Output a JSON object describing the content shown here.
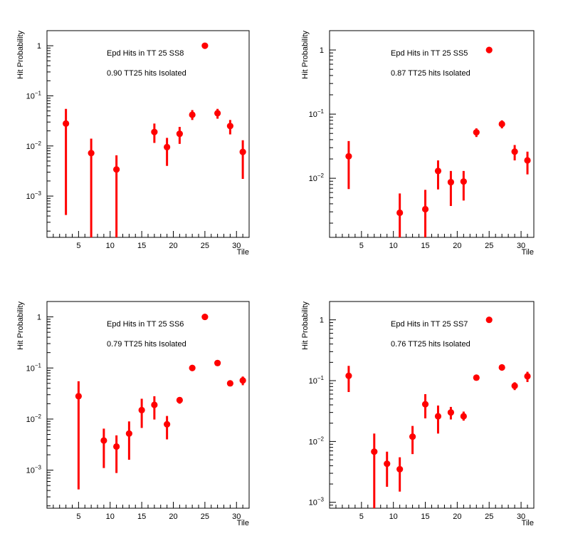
{
  "chart_data": [
    {
      "type": "scatter",
      "title": "Epd Hits in TT 25 SS8",
      "annotation": "0.90 TT25 hits Isolated",
      "xlabel": "Tile",
      "ylabel": "Hit Probability",
      "xlim": [
        0,
        32
      ],
      "ylim": [
        0.00015,
        2
      ],
      "yscale": "log",
      "x_ticks": [
        5,
        10,
        15,
        20,
        25,
        30
      ],
      "y_ticks": [
        0.001,
        0.01,
        0.1,
        1
      ],
      "y_tick_labels": [
        {
          "base": "10",
          "exp": "−3"
        },
        {
          "base": "10",
          "exp": "−2"
        },
        {
          "base": "10",
          "exp": "−1"
        },
        {
          "base": "1",
          "exp": ""
        }
      ],
      "marker_color": "#ff0000",
      "series": [
        {
          "x": [
            3,
            7,
            11,
            17,
            19,
            21,
            23,
            25,
            27,
            29,
            31
          ],
          "y": [
            0.028,
            0.0072,
            0.0034,
            0.019,
            0.0095,
            0.0175,
            0.042,
            1.0,
            0.045,
            0.025,
            0.0076
          ],
          "y_low": [
            0.00042,
            0.00015,
            0.00015,
            0.0115,
            0.004,
            0.011,
            0.033,
            0.98,
            0.035,
            0.017,
            0.0022
          ],
          "y_high": [
            0.055,
            0.014,
            0.0065,
            0.028,
            0.0145,
            0.024,
            0.052,
            1.02,
            0.055,
            0.033,
            0.013
          ]
        }
      ]
    },
    {
      "type": "scatter",
      "title": "Epd Hits in TT 25 SS5",
      "annotation": "0.87 TT25 hits Isolated",
      "xlabel": "Tile",
      "ylabel": "Hit Probability",
      "xlim": [
        0,
        32
      ],
      "ylim": [
        0.0012,
        2
      ],
      "yscale": "log",
      "x_ticks": [
        5,
        10,
        15,
        20,
        25,
        30
      ],
      "y_ticks": [
        0.01,
        0.1,
        1
      ],
      "y_tick_labels": [
        {
          "base": "10",
          "exp": "−2"
        },
        {
          "base": "10",
          "exp": "−1"
        },
        {
          "base": "1",
          "exp": ""
        }
      ],
      "marker_color": "#ff0000",
      "series": [
        {
          "x": [
            3,
            11,
            15,
            17,
            19,
            21,
            23,
            25,
            27,
            29,
            31
          ],
          "y": [
            0.022,
            0.0029,
            0.0033,
            0.013,
            0.0087,
            0.0089,
            0.052,
            1.0,
            0.07,
            0.026,
            0.019
          ],
          "y_low": [
            0.0068,
            0.0012,
            0.0012,
            0.0067,
            0.0037,
            0.0045,
            0.044,
            0.98,
            0.06,
            0.019,
            0.0115
          ],
          "y_high": [
            0.038,
            0.0058,
            0.0066,
            0.019,
            0.013,
            0.013,
            0.06,
            1.02,
            0.08,
            0.033,
            0.026
          ]
        }
      ]
    },
    {
      "type": "scatter",
      "title": "Epd Hits in TT 25 SS6",
      "annotation": "0.79 TT25 hits Isolated",
      "xlabel": "Tile",
      "ylabel": "Hit Probability",
      "xlim": [
        0,
        32
      ],
      "ylim": [
        0.00018,
        2
      ],
      "yscale": "log",
      "x_ticks": [
        5,
        10,
        15,
        20,
        25,
        30
      ],
      "y_ticks": [
        0.001,
        0.01,
        0.1,
        1
      ],
      "y_tick_labels": [
        {
          "base": "10",
          "exp": "−3"
        },
        {
          "base": "10",
          "exp": "−2"
        },
        {
          "base": "10",
          "exp": "−1"
        },
        {
          "base": "1",
          "exp": ""
        }
      ],
      "marker_color": "#ff0000",
      "series": [
        {
          "x": [
            5,
            9,
            11,
            13,
            15,
            17,
            19,
            21,
            23,
            25,
            27,
            29,
            31
          ],
          "y": [
            0.028,
            0.0038,
            0.0029,
            0.0052,
            0.015,
            0.019,
            0.0079,
            0.0235,
            0.1,
            1.0,
            0.125,
            0.05,
            0.057
          ],
          "y_low": [
            0.00042,
            0.0011,
            0.00088,
            0.0016,
            0.0067,
            0.0098,
            0.004,
            0.02,
            0.095,
            0.98,
            0.12,
            0.044,
            0.046
          ],
          "y_high": [
            0.055,
            0.0065,
            0.0048,
            0.009,
            0.025,
            0.028,
            0.0115,
            0.027,
            0.106,
            1.02,
            0.131,
            0.056,
            0.068
          ]
        }
      ]
    },
    {
      "type": "scatter",
      "title": "Epd Hits in TT 25 SS7",
      "annotation": "0.76 TT25 hits Isolated",
      "xlabel": "Tile",
      "ylabel": "Hit Probability",
      "xlim": [
        0,
        32
      ],
      "ylim": [
        0.0008,
        2
      ],
      "yscale": "log",
      "x_ticks": [
        5,
        10,
        15,
        20,
        25,
        30
      ],
      "y_ticks": [
        0.001,
        0.01,
        0.1,
        1
      ],
      "y_tick_labels": [
        {
          "base": "10",
          "exp": "−3"
        },
        {
          "base": "10",
          "exp": "−2"
        },
        {
          "base": "10",
          "exp": "−1"
        },
        {
          "base": "1",
          "exp": ""
        }
      ],
      "marker_color": "#ff0000",
      "series": [
        {
          "x": [
            3,
            7,
            9,
            11,
            13,
            15,
            17,
            19,
            21,
            23,
            25,
            27,
            29,
            31
          ],
          "y": [
            0.12,
            0.0068,
            0.0043,
            0.0035,
            0.012,
            0.041,
            0.026,
            0.03,
            0.026,
            0.112,
            1.0,
            0.165,
            0.082,
            0.118
          ],
          "y_low": [
            0.065,
            0.0008,
            0.0018,
            0.0015,
            0.0062,
            0.024,
            0.0135,
            0.023,
            0.022,
            0.106,
            0.98,
            0.155,
            0.07,
            0.095
          ],
          "y_high": [
            0.175,
            0.0135,
            0.0068,
            0.0055,
            0.018,
            0.06,
            0.039,
            0.037,
            0.031,
            0.118,
            1.02,
            0.175,
            0.094,
            0.14
          ]
        }
      ]
    }
  ]
}
